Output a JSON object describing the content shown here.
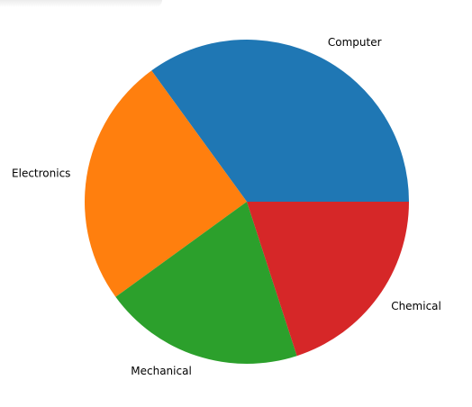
{
  "chart_data": {
    "type": "pie",
    "title": "",
    "categories": [
      "Computer",
      "Electronics",
      "Mechanical",
      "Chemical"
    ],
    "values": [
      35,
      25,
      20,
      20
    ],
    "colors": [
      "#1f77b4",
      "#ff7f0e",
      "#2ca02c",
      "#d62728"
    ],
    "start_angle_deg": 0,
    "direction": "counterclockwise",
    "legend": "none"
  }
}
